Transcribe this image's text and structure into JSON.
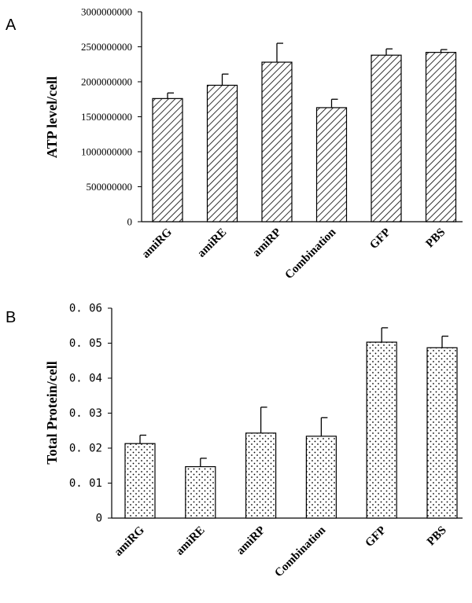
{
  "chart_data": [
    {
      "panel": "A",
      "type": "bar",
      "ylabel": "ATP level/cell",
      "xlabel": "",
      "ylim": [
        0,
        3000000000
      ],
      "yticks": [
        "0",
        "500000000",
        "1000000000",
        "1500000000",
        "2000000000",
        "2500000000",
        "3000000000"
      ],
      "ytick_values": [
        0,
        500000000,
        1000000000,
        1500000000,
        2000000000,
        2500000000,
        3000000000
      ],
      "categories": [
        "amiRG",
        "amiRE",
        "amiRP",
        "Combination",
        "GFP",
        "PBS"
      ],
      "values": [
        1760000000,
        1950000000,
        2280000000,
        1630000000,
        2380000000,
        2420000000
      ],
      "errors": [
        80000000,
        160000000,
        270000000,
        120000000,
        90000000,
        40000000
      ],
      "fill": "diagonal-hatch",
      "grid": false
    },
    {
      "panel": "B",
      "type": "bar",
      "ylabel": "Total Protein/cell",
      "xlabel": "",
      "ylim": [
        0,
        0.06
      ],
      "yticks": [
        "0",
        "0. 01",
        "0. 02",
        "0. 03",
        "0. 04",
        "0. 05",
        "0. 06"
      ],
      "ytick_values": [
        0,
        0.01,
        0.02,
        0.03,
        0.04,
        0.05,
        0.06
      ],
      "categories": [
        "amiRG",
        "amiRE",
        "amiRP",
        "Combination",
        "GFP",
        "PBS"
      ],
      "values": [
        0.0213,
        0.0147,
        0.0243,
        0.0234,
        0.0503,
        0.0487
      ],
      "errors": [
        0.0024,
        0.0024,
        0.0074,
        0.0053,
        0.0041,
        0.0033
      ],
      "fill": "dotted",
      "grid": false
    }
  ],
  "colors": {
    "bar_stroke": "#000000",
    "background": "#ffffff"
  }
}
